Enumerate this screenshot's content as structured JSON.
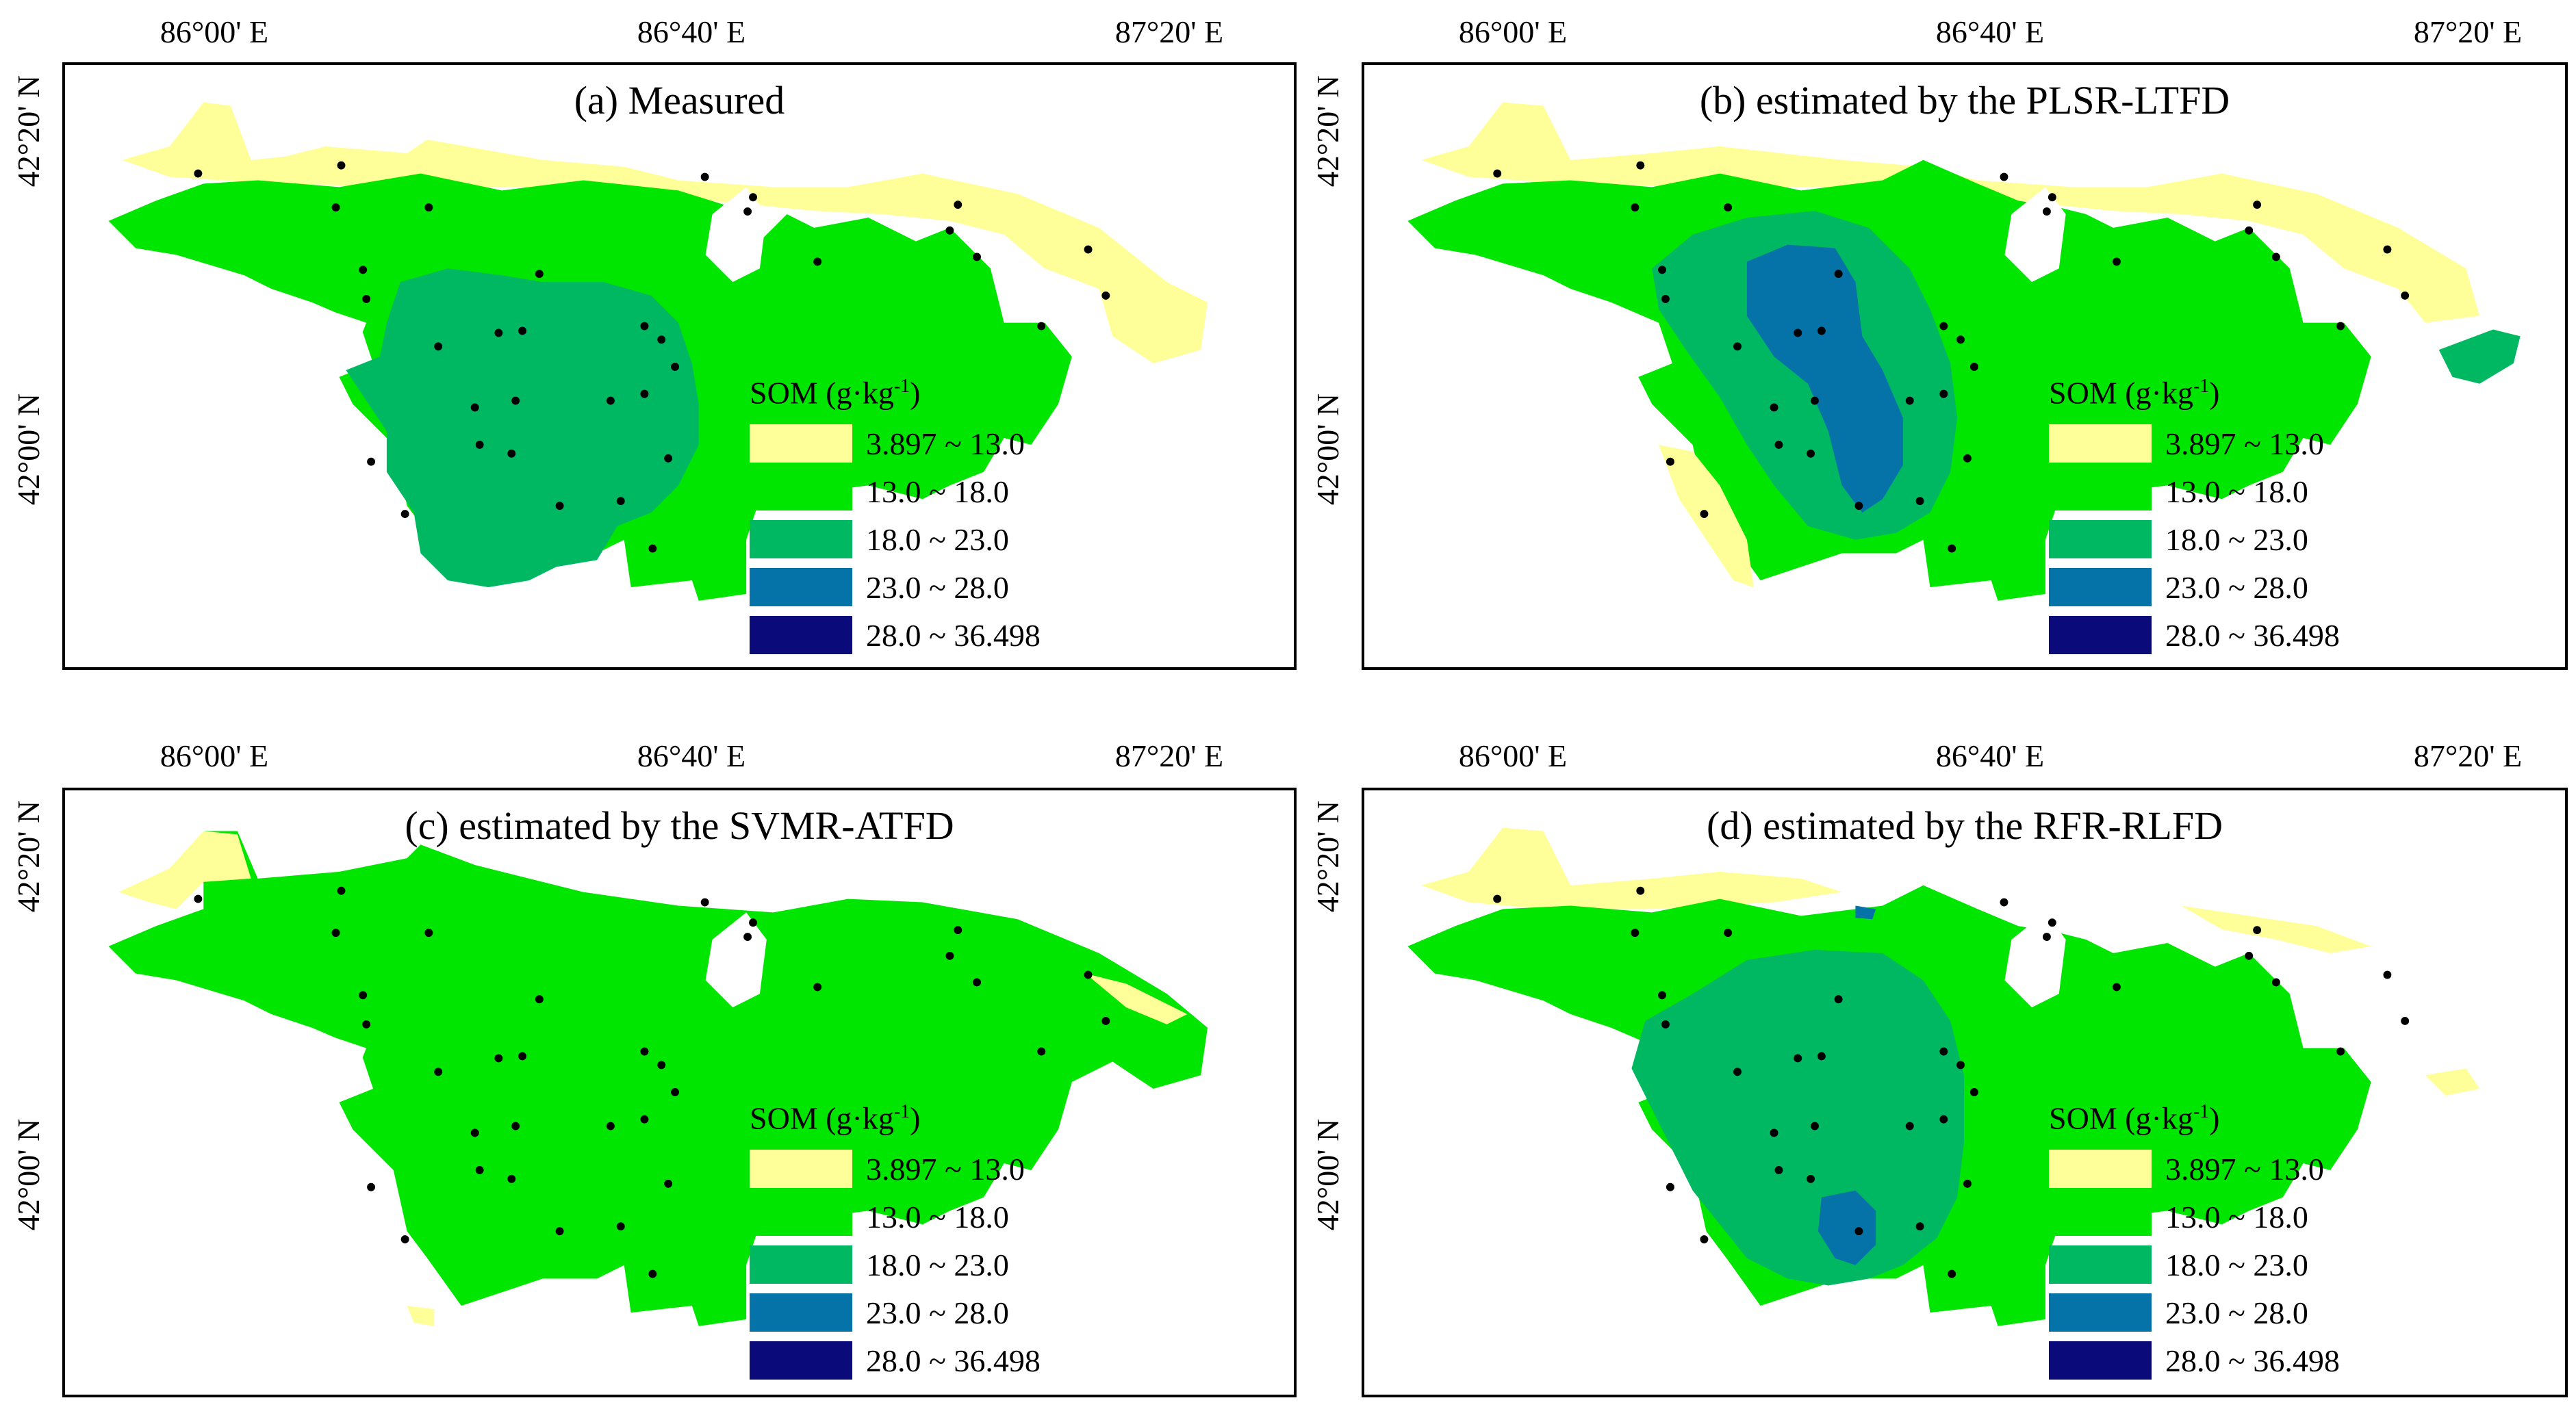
{
  "figure": {
    "x_ticks": [
      "86°00' E",
      "86°40' E",
      "87°20' E"
    ],
    "y_ticks": [
      "42°20' N",
      "42°00' N"
    ]
  },
  "legend": {
    "title": "SOM (g·kg",
    "title_sup": "-1",
    "title_close": ")",
    "classes": [
      {
        "label": "3.897 ~ 13.0",
        "color": "#ffff99"
      },
      {
        "label": "13.0 ~ 18.0",
        "color": "#00e600"
      },
      {
        "label": "18.0 ~ 23.0",
        "color": "#00b862"
      },
      {
        "label": "23.0 ~ 28.0",
        "color": "#0572a8"
      },
      {
        "label": "28.0 ~ 36.498",
        "color": "#0a0a7a"
      }
    ]
  },
  "panels": [
    {
      "id": "a",
      "title": "(a) Measured"
    },
    {
      "id": "b",
      "title": "(b) estimated by the PLSR-LTFD"
    },
    {
      "id": "c",
      "title": "(c) estimated by the SVMR-ATFD"
    },
    {
      "id": "d",
      "title": "(d) estimated by the RFR-RLFD"
    }
  ]
}
